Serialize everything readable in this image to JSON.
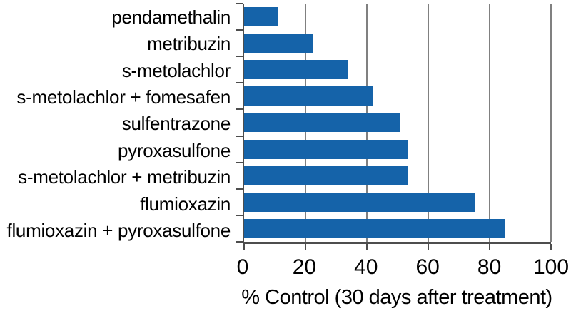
{
  "chart_data": {
    "type": "bar",
    "orientation": "horizontal",
    "title": "",
    "xlabel": "% Control (30 days after treatment)",
    "ylabel": "",
    "categories": [
      "pendamethalin",
      "metribuzin",
      "s-metolachlor",
      "s-metolachlor + fomesafen",
      "sulfentrazone",
      "pyroxasulfone",
      "s-metolachlor + metribuzin",
      "flumioxazin",
      "flumioxazin + pyroxasulfone"
    ],
    "values": [
      11,
      22.5,
      34,
      42,
      51,
      53.5,
      53.5,
      75,
      85
    ],
    "xlim": [
      0,
      100
    ],
    "xticks": [
      0,
      20,
      40,
      60,
      80,
      100
    ],
    "grid": "vertical-only",
    "legend": "none",
    "bar_color": "#1563A9",
    "gridline_color": "#808080",
    "axis_color": "#4D4D4D",
    "text_color": "#000000",
    "background_color": "#FFFFFF"
  }
}
